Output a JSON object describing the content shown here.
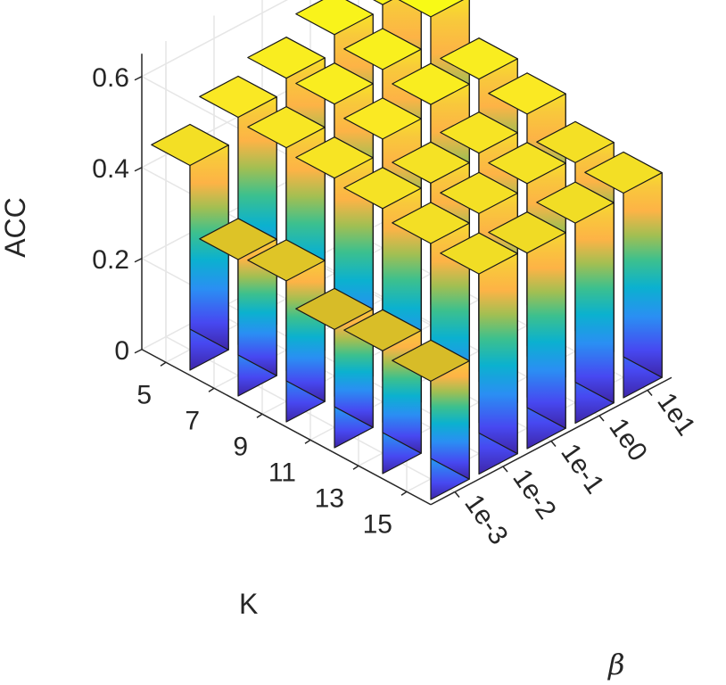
{
  "chart_data": {
    "type": "bar3d",
    "title": "",
    "zlabel": "ACC",
    "klabel": "K",
    "betalabel": "β",
    "zlim": [
      0,
      0.6
    ],
    "zticks": [
      "0",
      "0.2",
      "0.4",
      "0.6"
    ],
    "k_values": [
      "5",
      "7",
      "9",
      "11",
      "13",
      "15"
    ],
    "beta_values": [
      "1e-3",
      "1e-2",
      "1e-1",
      "1e0",
      "1e1"
    ],
    "values": [
      [
        0.45,
        0.5,
        0.53,
        0.57,
        0.58
      ],
      [
        0.3,
        0.49,
        0.53,
        0.55,
        0.61
      ],
      [
        0.31,
        0.48,
        0.51,
        0.53,
        0.53
      ],
      [
        0.26,
        0.47,
        0.47,
        0.48,
        0.51
      ],
      [
        0.27,
        0.45,
        0.46,
        0.47,
        0.46
      ],
      [
        0.26,
        0.44,
        0.43,
        0.44,
        0.45
      ]
    ],
    "grid": true,
    "colormap": "parula"
  }
}
